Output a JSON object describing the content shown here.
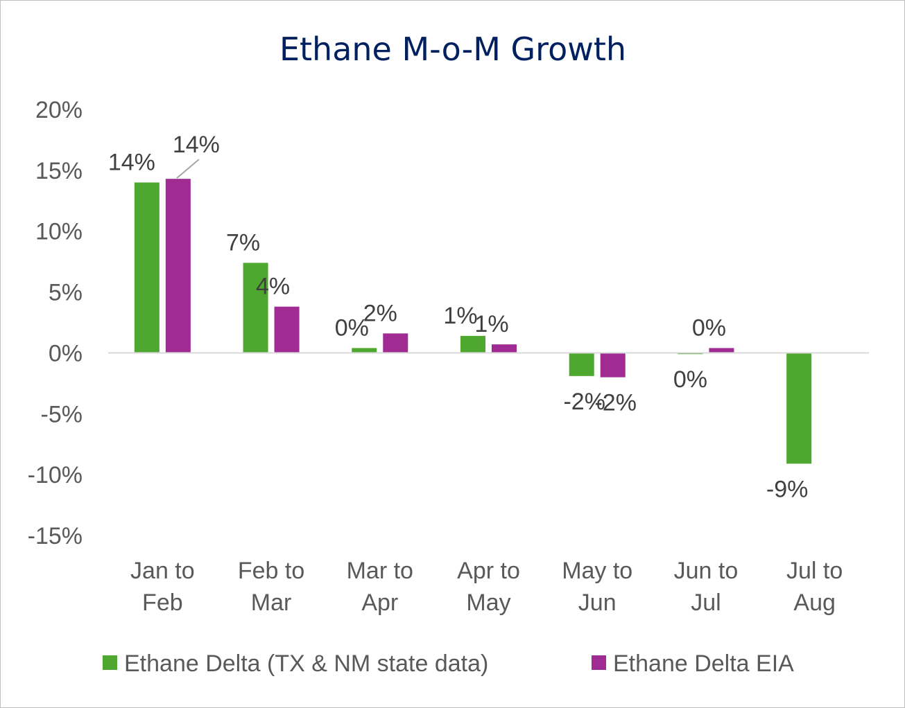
{
  "chart_data": {
    "type": "bar",
    "title": "Ethane M-o-M Growth",
    "xlabel": "",
    "ylabel": "",
    "categories": [
      [
        "Jan to",
        "Feb"
      ],
      [
        "Feb to",
        "Mar"
      ],
      [
        "Mar to",
        "Apr"
      ],
      [
        "Apr to",
        "May"
      ],
      [
        "May to",
        "Jun"
      ],
      [
        "Jun to",
        "Jul"
      ],
      [
        "Jul to",
        "Aug"
      ]
    ],
    "series": [
      {
        "name": "Ethane Delta (TX & NM state data)",
        "color": "#4ea72e",
        "values": [
          14.0,
          7.4,
          0.4,
          1.4,
          -1.9,
          -0.1,
          -9.1
        ],
        "labels": [
          "14%",
          "7%",
          "0%",
          "1%",
          "-2%",
          "0%",
          "-9%"
        ]
      },
      {
        "name": "Ethane Delta EIA",
        "color": "#a02b93",
        "values": [
          14.3,
          3.8,
          1.6,
          0.7,
          -2.0,
          0.4,
          null
        ],
        "labels": [
          "14%",
          "4%",
          "2%",
          "1%",
          "-2%",
          "0%",
          ""
        ]
      }
    ],
    "ylim": [
      -15,
      20
    ],
    "yticks": [
      20,
      15,
      10,
      5,
      0,
      -5,
      -10,
      -15
    ],
    "ytick_labels": [
      "20%",
      "15%",
      "10%",
      "5%",
      "0%",
      "-5%",
      "-10%",
      "-15%"
    ],
    "grid": false,
    "legend": "bottom"
  }
}
